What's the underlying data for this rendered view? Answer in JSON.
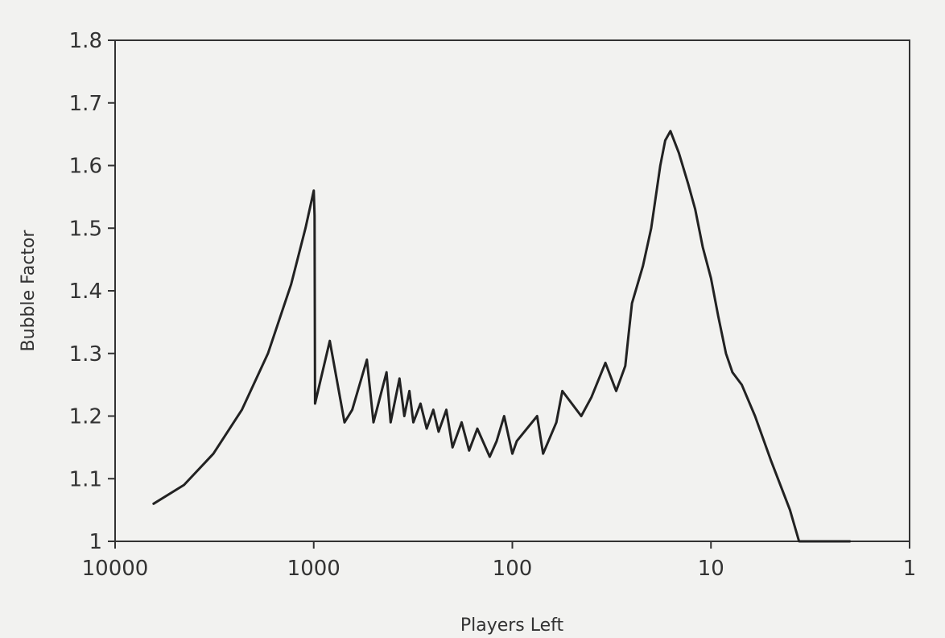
{
  "chart_data": {
    "type": "line",
    "title": "",
    "xlabel": "Players Left",
    "ylabel": "Bubble Factor",
    "x_scale": "log",
    "x_reversed": true,
    "xlim": [
      10000,
      1
    ],
    "ylim": [
      1,
      1.8
    ],
    "x_ticks": [
      {
        "value": 10000,
        "label": "10000"
      },
      {
        "value": 1000,
        "label": "1000"
      },
      {
        "value": 100,
        "label": "100"
      },
      {
        "value": 10,
        "label": "10"
      },
      {
        "value": 1,
        "label": "1"
      }
    ],
    "y_ticks": [
      {
        "value": 1,
        "label": "1"
      },
      {
        "value": 1.1,
        "label": "1.1"
      },
      {
        "value": 1.2,
        "label": "1.2"
      },
      {
        "value": 1.3,
        "label": "1.3"
      },
      {
        "value": 1.4,
        "label": "1.4"
      },
      {
        "value": 1.5,
        "label": "1.5"
      },
      {
        "value": 1.6,
        "label": "1.6"
      },
      {
        "value": 1.7,
        "label": "1.7"
      },
      {
        "value": 1.8,
        "label": "1.8"
      }
    ],
    "grid": false,
    "line_color": "#222222",
    "series": [
      {
        "x": [
          6400,
          4500,
          3200,
          2300,
          1700,
          1300,
          1100,
          1000,
          990,
          985,
          920,
          830,
          700,
          640,
          540,
          500,
          430,
          410,
          370,
          350,
          330,
          315,
          290,
          270,
          250,
          235,
          215,
          200,
          180,
          165,
          150,
          130,
          120,
          110,
          100,
          95,
          75,
          70,
          60,
          56,
          45,
          40,
          34,
          30,
          27,
          26,
          25,
          22,
          20,
          18,
          17,
          16,
          14.5,
          13,
          12,
          11,
          10,
          9.2,
          8.4,
          7.8,
          7,
          6,
          5,
          4,
          3.6,
          3,
          2.6,
          2.3,
          2
        ],
        "y": [
          1.06,
          1.09,
          1.14,
          1.21,
          1.3,
          1.41,
          1.5,
          1.56,
          1.52,
          1.22,
          1.26,
          1.32,
          1.19,
          1.21,
          1.29,
          1.19,
          1.27,
          1.19,
          1.26,
          1.2,
          1.24,
          1.19,
          1.22,
          1.18,
          1.21,
          1.175,
          1.21,
          1.15,
          1.19,
          1.145,
          1.18,
          1.135,
          1.16,
          1.2,
          1.14,
          1.16,
          1.2,
          1.14,
          1.19,
          1.24,
          1.2,
          1.23,
          1.285,
          1.24,
          1.28,
          1.33,
          1.38,
          1.44,
          1.5,
          1.6,
          1.64,
          1.655,
          1.62,
          1.57,
          1.53,
          1.47,
          1.42,
          1.36,
          1.3,
          1.27,
          1.25,
          1.2,
          1.13,
          1.05,
          1.0,
          0.99,
          0.99,
          0.99,
          0.99
        ]
      }
    ]
  }
}
